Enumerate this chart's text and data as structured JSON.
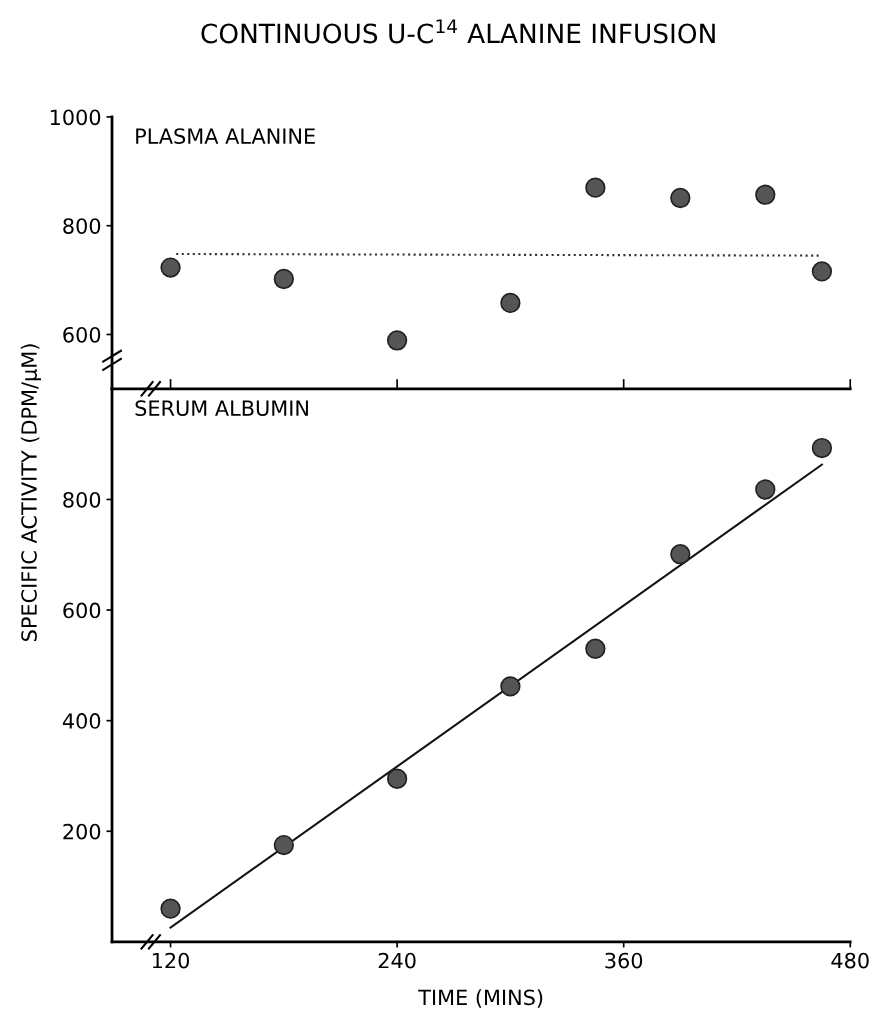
{
  "chart_data": [
    {
      "type": "scatter",
      "title": "CONTINUOUS U-C$^{14}$ ALANINE INFUSION",
      "subtitle": "PLASMA ALANINE",
      "tick_labels": "y",
      "xlim": [
        89,
        480
      ],
      "xticks": [
        {
          "value": 120,
          "label": null
        },
        {
          "value": 240,
          "label": null
        },
        {
          "value": 360,
          "label": null
        },
        {
          "value": 480,
          "label": null
        }
      ],
      "ylim": [
        500,
        1000
      ],
      "yticks": [
        600,
        800,
        1000
      ],
      "grid": false,
      "legend": false,
      "series": [
        {
          "marker": "circle",
          "color": "#555555",
          "x": [
            120,
            180,
            240,
            300,
            345,
            390,
            435,
            465
          ],
          "values": [
            723,
            702,
            589,
            658,
            870,
            851,
            857,
            716
          ]
        },
        {
          "type": "line",
          "color": "#333333",
          "line_style": "dotted",
          "x": [
            123,
            465
          ],
          "values": [
            748,
            745
          ]
        }
      ]
    },
    {
      "type": "scatter",
      "subtitle": "SERUM ALBUMIN",
      "xlabel": "TIME (MINS)",
      "ylabel": "SPECIFIC ACTIVITY (DPM/μM)",
      "xlim": [
        89,
        480
      ],
      "xticks": [
        120,
        240,
        360,
        480
      ],
      "ylim": [
        0,
        1000
      ],
      "yticks": [
        200,
        400,
        600,
        800
      ],
      "grid": false,
      "legend": false,
      "series": [
        {
          "marker": "circle",
          "color": "#555555",
          "x": [
            120,
            180,
            240,
            300,
            345,
            390,
            435,
            465
          ],
          "values": [
            60,
            175,
            295,
            462,
            530,
            701,
            818,
            893
          ]
        },
        {
          "type": "line",
          "color": "#111111",
          "line_style": "solid",
          "x": [
            120,
            465
          ],
          "values": [
            26,
            863
          ]
        }
      ]
    }
  ]
}
